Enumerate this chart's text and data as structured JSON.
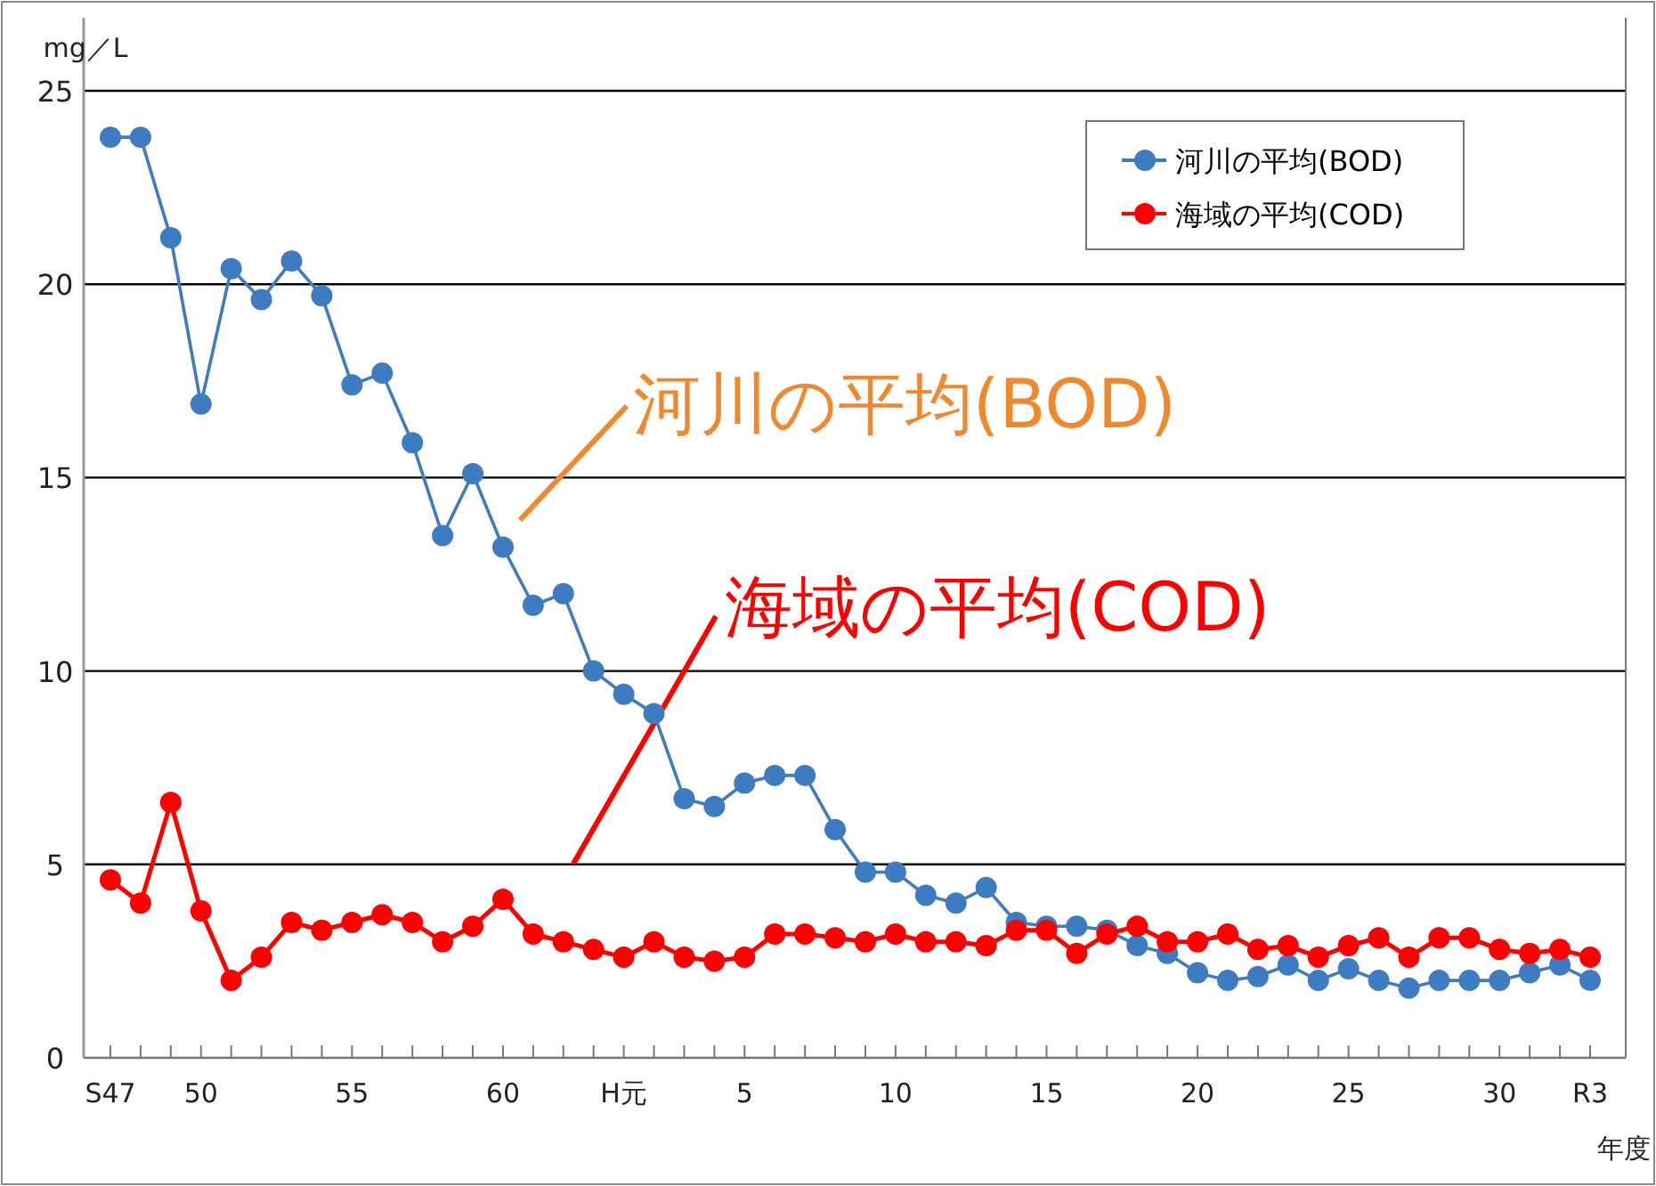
{
  "chart_data": {
    "type": "line",
    "ylabel": "mg／L",
    "xlabel": "年度",
    "categories": [
      "S47",
      null,
      null,
      "50",
      null,
      null,
      null,
      null,
      "55",
      null,
      null,
      null,
      null,
      "60",
      null,
      null,
      null,
      "H元",
      null,
      null,
      null,
      "5",
      null,
      null,
      null,
      null,
      "10",
      null,
      null,
      null,
      null,
      "15",
      null,
      null,
      null,
      null,
      "20",
      null,
      null,
      null,
      null,
      "25",
      null,
      null,
      null,
      null,
      "30",
      null,
      null,
      "R3"
    ],
    "series": [
      {
        "name": "河川の平均(BOD)",
        "color": "#3d7cc0",
        "values": [
          23.8,
          23.8,
          21.2,
          16.9,
          20.4,
          19.6,
          20.6,
          19.7,
          17.4,
          17.7,
          15.9,
          13.5,
          15.1,
          13.2,
          11.7,
          12.0,
          10.0,
          9.4,
          8.9,
          6.7,
          6.5,
          7.1,
          7.3,
          7.3,
          5.9,
          4.8,
          4.8,
          4.2,
          4.0,
          4.4,
          3.5,
          3.4,
          3.4,
          3.3,
          2.9,
          2.7,
          2.2,
          2.0,
          2.1,
          2.4,
          2.0,
          2.3,
          2.0,
          1.8,
          2.0,
          2.0,
          2.0,
          2.2,
          2.4,
          2.0
        ]
      },
      {
        "name": "海域の平均(COD)",
        "color": "#ff0000",
        "values": [
          4.6,
          4.0,
          6.6,
          3.8,
          2.0,
          2.6,
          3.5,
          3.3,
          3.5,
          3.7,
          3.5,
          3.0,
          3.4,
          4.1,
          3.2,
          3.0,
          2.8,
          2.6,
          3.0,
          2.6,
          2.5,
          2.6,
          3.2,
          3.2,
          3.1,
          3.0,
          3.2,
          3.0,
          3.0,
          2.9,
          3.3,
          3.3,
          2.7,
          3.2,
          3.4,
          3.0,
          3.0,
          3.2,
          2.8,
          2.9,
          2.6,
          2.9,
          3.1,
          2.6,
          3.1,
          3.1,
          2.8,
          2.7,
          2.8,
          2.6
        ]
      }
    ],
    "annotations": [
      "河川の平均(BOD)",
      "海域の平均(COD)"
    ],
    "ylim": [
      0,
      25
    ],
    "yticks": [
      0,
      5,
      10,
      15,
      20,
      25
    ],
    "grid": "y",
    "legend": "top right",
    "marker": "circle",
    "line_style": "solid"
  }
}
